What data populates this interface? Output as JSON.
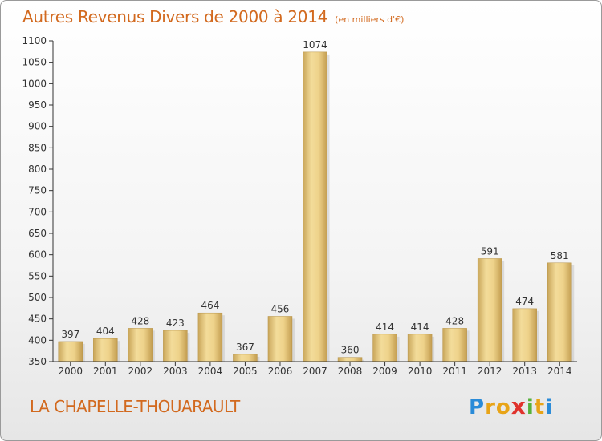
{
  "chart_data": {
    "type": "bar",
    "title": "Autres Revenus Divers de 2000 à 2014",
    "subtitle": "(en milliers d'€)",
    "categories": [
      "2000",
      "2001",
      "2002",
      "2003",
      "2004",
      "2005",
      "2006",
      "2007",
      "2008",
      "2009",
      "2010",
      "2011",
      "2012",
      "2013",
      "2014"
    ],
    "values": [
      397,
      404,
      428,
      423,
      464,
      367,
      456,
      1074,
      360,
      414,
      414,
      428,
      591,
      474,
      581
    ],
    "ylim": [
      350,
      1100
    ],
    "yticks": [
      350,
      400,
      450,
      500,
      550,
      600,
      650,
      700,
      750,
      800,
      850,
      900,
      950,
      1000,
      1050,
      1100
    ],
    "grid": false,
    "legend": "none",
    "bar_color": "#e2c27a"
  },
  "footer": {
    "commune": "LA CHAPELLE-THOUARAULT",
    "brand": "Proxiti"
  },
  "colors": {
    "title": "#d2691e",
    "axis": "#333333"
  }
}
